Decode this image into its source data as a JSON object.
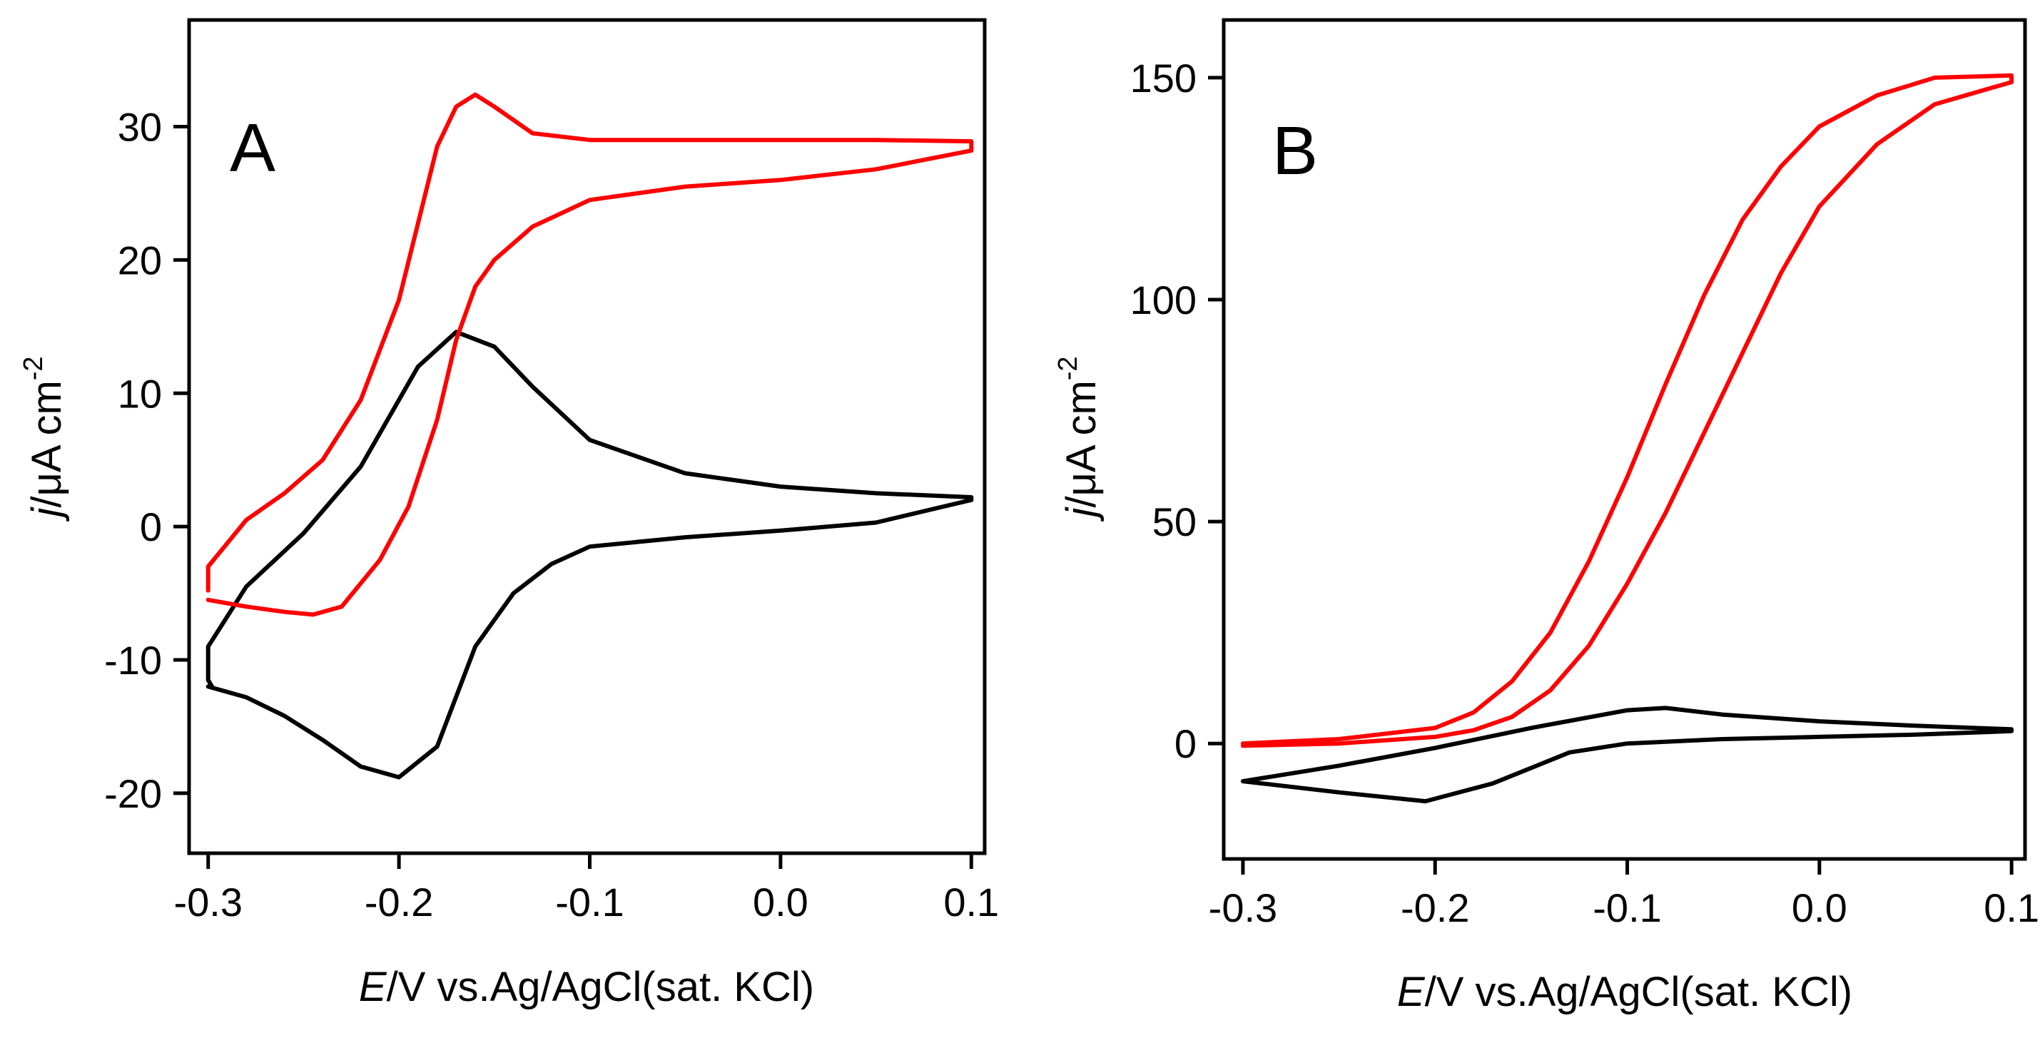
{
  "chart_data": [
    {
      "type": "line",
      "panel_label": "A",
      "xlabel_italic": "E",
      "xlabel_rest": "/V vs.Ag/AgCl(sat. KCl)",
      "ylabel_italic": "j",
      "ylabel_rest": "/μA cm",
      "ylabel_sup": "-2",
      "xlim": [
        -0.31,
        0.107
      ],
      "ylim": [
        -24.5,
        38
      ],
      "xticks": [
        -0.3,
        -0.2,
        -0.1,
        0.0,
        0.1
      ],
      "xtick_labels": [
        "-0.3",
        "-0.2",
        "-0.1",
        "0.0",
        "0.1"
      ],
      "yticks": [
        -20,
        -10,
        0,
        10,
        20,
        30
      ],
      "ytick_labels": [
        "-20",
        "-10",
        "0",
        "10",
        "20",
        "30"
      ],
      "series": [
        {
          "name": "black",
          "color": "#000000",
          "x": [
            -0.3,
            -0.28,
            -0.26,
            -0.24,
            -0.22,
            -0.2,
            -0.18,
            -0.168,
            -0.16,
            -0.14,
            -0.12,
            -0.1,
            -0.05,
            0.0,
            0.05,
            0.1,
            0.1,
            0.05,
            0.0,
            -0.05,
            -0.1,
            -0.13,
            -0.15,
            -0.17,
            -0.19,
            -0.2,
            -0.21,
            -0.22,
            -0.25,
            -0.28,
            -0.3,
            -0.3,
            -0.298
          ],
          "y": [
            -12.0,
            -12.8,
            -14.2,
            -16.0,
            -18.0,
            -18.8,
            -16.5,
            -12.0,
            -9.0,
            -5.0,
            -2.8,
            -1.5,
            -0.8,
            -0.3,
            0.3,
            2.0,
            2.2,
            2.5,
            3.0,
            4.0,
            6.5,
            10.5,
            13.5,
            14.6,
            12.0,
            9.5,
            7.0,
            4.5,
            -0.5,
            -4.5,
            -9.0,
            -11.5,
            -12.0
          ]
        },
        {
          "name": "red",
          "color": "#ff0000",
          "x": [
            -0.3,
            -0.28,
            -0.26,
            -0.245,
            -0.23,
            -0.21,
            -0.195,
            -0.18,
            -0.17,
            -0.165,
            -0.16,
            -0.15,
            -0.13,
            -0.1,
            -0.05,
            0.0,
            0.05,
            0.1,
            0.1,
            0.05,
            0.0,
            -0.05,
            -0.1,
            -0.13,
            -0.15,
            -0.16,
            -0.17,
            -0.18,
            -0.2,
            -0.22,
            -0.24,
            -0.26,
            -0.28,
            -0.3,
            -0.3
          ],
          "y": [
            -5.5,
            -6.0,
            -6.4,
            -6.6,
            -6.0,
            -2.5,
            1.5,
            8.0,
            14.0,
            16.0,
            18.0,
            20.0,
            22.5,
            24.5,
            25.5,
            26.0,
            26.8,
            28.2,
            28.9,
            29.0,
            29.0,
            29.0,
            29.0,
            29.5,
            31.5,
            32.4,
            31.5,
            28.5,
            17.0,
            9.5,
            5.0,
            2.5,
            0.5,
            -3.0,
            -4.8
          ]
        }
      ]
    },
    {
      "type": "line",
      "panel_label": "B",
      "xlabel_italic": "E",
      "xlabel_rest": "/V vs.Ag/AgCl(sat. KCl)",
      "ylabel_italic": "j",
      "ylabel_rest": "/μA cm",
      "ylabel_sup": "-2",
      "xlim": [
        -0.31,
        0.107
      ],
      "ylim": [
        -26,
        163
      ],
      "xticks": [
        -0.3,
        -0.2,
        -0.1,
        0.0,
        0.1
      ],
      "xtick_labels": [
        "-0.3",
        "-0.2",
        "-0.1",
        "0.0",
        "0.1"
      ],
      "yticks": [
        0,
        50,
        100,
        150
      ],
      "ytick_labels": [
        "0",
        "50",
        "100",
        "150"
      ],
      "series": [
        {
          "name": "black",
          "color": "#000000",
          "x": [
            -0.3,
            -0.25,
            -0.205,
            -0.17,
            -0.13,
            -0.1,
            -0.05,
            0.0,
            0.05,
            0.1,
            0.1,
            0.05,
            0.0,
            -0.05,
            -0.08,
            -0.1,
            -0.15,
            -0.2,
            -0.25,
            -0.3
          ],
          "y": [
            -8.5,
            -11.0,
            -13.0,
            -9.0,
            -2.0,
            0.0,
            1.0,
            1.5,
            2.0,
            2.8,
            3.2,
            4.0,
            5.0,
            6.5,
            8.0,
            7.5,
            3.5,
            -1.0,
            -5.0,
            -8.5
          ]
        },
        {
          "name": "red",
          "color": "#ff0000",
          "x": [
            -0.3,
            -0.25,
            -0.2,
            -0.18,
            -0.16,
            -0.14,
            -0.12,
            -0.1,
            -0.08,
            -0.06,
            -0.04,
            -0.02,
            0.0,
            0.03,
            0.06,
            0.1,
            0.1,
            0.06,
            0.03,
            0.0,
            -0.02,
            -0.04,
            -0.06,
            -0.08,
            -0.1,
            -0.12,
            -0.14,
            -0.16,
            -0.18,
            -0.2,
            -0.25,
            -0.3
          ],
          "y": [
            -0.5,
            0.0,
            1.5,
            3.0,
            6.0,
            12.0,
            22.0,
            36.0,
            52.0,
            70.0,
            88.0,
            106.0,
            121.0,
            135.0,
            144.0,
            149.0,
            150.5,
            150.0,
            146.0,
            139.0,
            130.0,
            118.0,
            101.0,
            81.0,
            60.0,
            41.0,
            25.0,
            14.0,
            7.0,
            3.5,
            1.0,
            0.0
          ]
        }
      ]
    }
  ]
}
